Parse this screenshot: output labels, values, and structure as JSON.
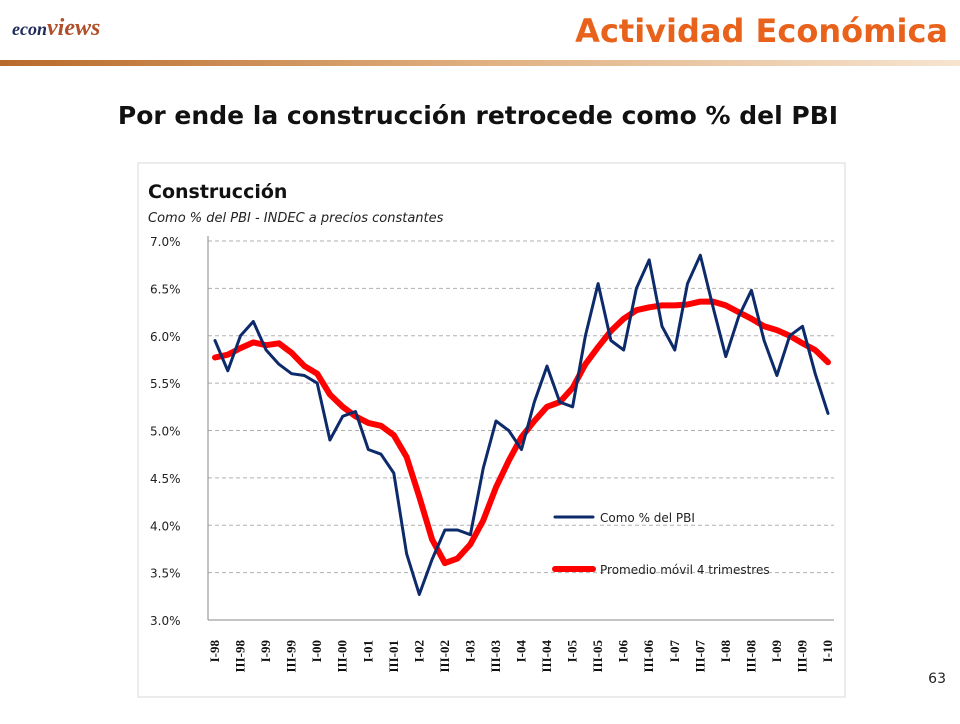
{
  "slide": {
    "brand_left": "econ",
    "brand_right": "views",
    "header": "Actividad Económica",
    "title": "Por ende la construcción retrocede como % del PBI",
    "page": "63"
  },
  "chart_data": {
    "type": "line",
    "title": "Construcción",
    "subtitle": "Como % del PBI - INDEC a precios constantes",
    "categories": [
      "I-98",
      null,
      "III-98",
      null,
      "I-99",
      null,
      "III-99",
      null,
      "I-00",
      null,
      "III-00",
      null,
      "I-01",
      null,
      "III-01",
      null,
      "I-02",
      null,
      "III-02",
      null,
      "I-03",
      null,
      "III-03",
      null,
      "I-04",
      null,
      "III-04",
      null,
      "I-05",
      null,
      "III-05",
      null,
      "I-06",
      null,
      "III-06",
      null,
      "I-07",
      null,
      "III-07",
      null,
      "I-08",
      null,
      "III-08",
      null,
      "I-09",
      null,
      "III-09",
      null,
      "I-10"
    ],
    "series": [
      {
        "name": "Como % del PBI",
        "color": "#0d2a6b",
        "values": [
          5.95,
          5.63,
          6.0,
          6.15,
          5.85,
          5.7,
          5.6,
          5.58,
          5.5,
          4.9,
          5.15,
          5.2,
          4.8,
          4.75,
          4.55,
          3.7,
          3.27,
          3.64,
          3.95,
          3.95,
          3.9,
          4.6,
          5.1,
          5.0,
          4.8,
          5.3,
          5.68,
          5.3,
          5.25,
          6.0,
          6.55,
          5.95,
          5.85,
          6.5,
          6.8,
          6.1,
          5.85,
          6.55,
          6.85,
          6.3,
          5.78,
          6.2,
          6.48,
          5.95,
          5.58,
          6.0,
          6.1,
          5.6,
          5.18
        ]
      },
      {
        "name": "Promedio móvil 4 trimestres",
        "color": "#ff0000",
        "values": [
          5.77,
          5.8,
          5.87,
          5.93,
          5.9,
          5.92,
          5.82,
          5.68,
          5.6,
          5.38,
          5.25,
          5.15,
          5.08,
          5.05,
          4.95,
          4.72,
          4.3,
          3.85,
          3.6,
          3.65,
          3.8,
          4.05,
          4.4,
          4.68,
          4.93,
          5.1,
          5.25,
          5.3,
          5.45,
          5.7,
          5.88,
          6.05,
          6.18,
          6.27,
          6.3,
          6.32,
          6.32,
          6.33,
          6.36,
          6.36,
          6.32,
          6.25,
          6.18,
          6.1,
          6.06,
          6.0,
          5.92,
          5.85,
          5.72
        ]
      }
    ],
    "ylim": [
      3,
      7
    ],
    "yticks": [
      {
        "value": 3,
        "label": "3.0%"
      },
      {
        "value": 3.5,
        "label": "3.5%"
      },
      {
        "value": 4,
        "label": "4.0%"
      },
      {
        "value": 4.5,
        "label": "4.5%"
      },
      {
        "value": 5,
        "label": "5.0%"
      },
      {
        "value": 5.5,
        "label": "5.5%"
      },
      {
        "value": 6,
        "label": "6.0%"
      },
      {
        "value": 6.5,
        "label": "6.5%"
      },
      {
        "value": 7,
        "label": "7.0%"
      }
    ],
    "grid": true,
    "legend": "lower-right"
  }
}
